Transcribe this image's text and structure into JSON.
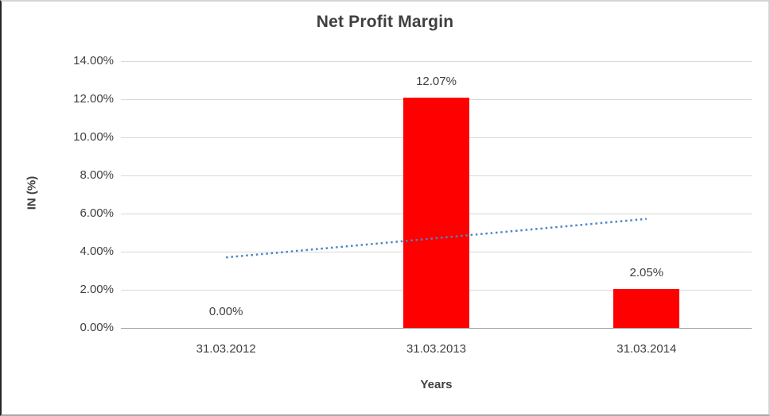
{
  "chart_data": {
    "type": "bar",
    "title": "Net Profit Margin",
    "xlabel": "Years",
    "ylabel": "IN (%)",
    "categories": [
      "31.03.2012",
      "31.03.2013",
      "31.03.2014"
    ],
    "series": [
      {
        "name": "Net Profit Margin",
        "values": [
          0.0,
          12.07,
          2.05
        ],
        "data_labels": [
          "0.00%",
          "12.07%",
          "2.05%"
        ],
        "color": "#ff0000"
      }
    ],
    "y_ticks": [
      {
        "value": 0,
        "label": "0.00%"
      },
      {
        "value": 2,
        "label": "2.00%"
      },
      {
        "value": 4,
        "label": "4.00%"
      },
      {
        "value": 6,
        "label": "6.00%"
      },
      {
        "value": 8,
        "label": "8.00%"
      },
      {
        "value": 10,
        "label": "10.00%"
      },
      {
        "value": 12,
        "label": "12.00%"
      },
      {
        "value": 14,
        "label": "14.00%"
      }
    ],
    "ylim": [
      0,
      14
    ],
    "grid": true,
    "legend": "none",
    "trendline": {
      "type": "linear",
      "style": "dotted",
      "color": "#4a86c8",
      "start_value": 3.7,
      "end_value": 5.72
    },
    "colors": {
      "bar": "#ff0000",
      "gridline": "#d9d9d9",
      "axis_line": "#9e9e9e",
      "text": "#3f3f3f"
    }
  }
}
